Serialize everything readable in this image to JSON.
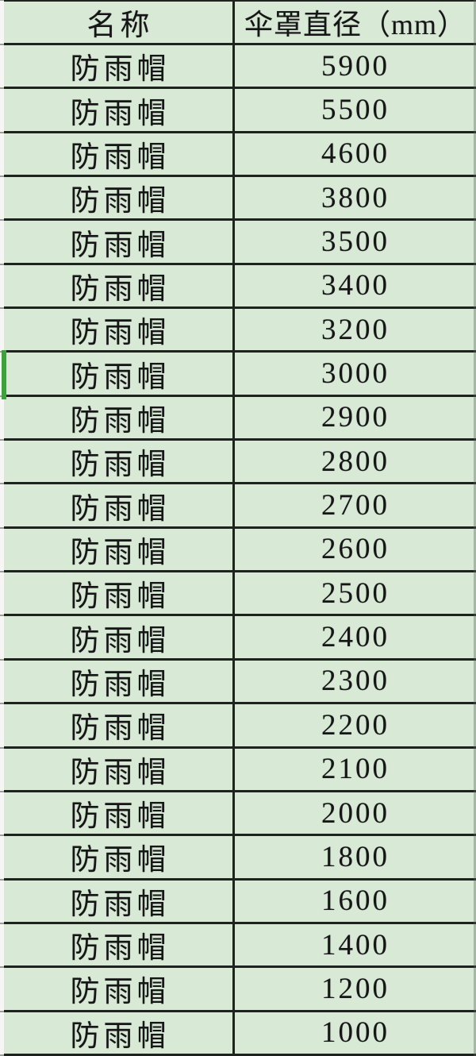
{
  "table": {
    "header": {
      "name": "名称",
      "diameter": "伞罩直径（mm）"
    },
    "rows": [
      {
        "name": "防雨帽",
        "value": "5900"
      },
      {
        "name": "防雨帽",
        "value": "5500"
      },
      {
        "name": "防雨帽",
        "value": "4600"
      },
      {
        "name": "防雨帽",
        "value": "3800"
      },
      {
        "name": "防雨帽",
        "value": "3500"
      },
      {
        "name": "防雨帽",
        "value": "3400"
      },
      {
        "name": "防雨帽",
        "value": "3200"
      },
      {
        "name": "防雨帽",
        "value": "3000"
      },
      {
        "name": "防雨帽",
        "value": "2900"
      },
      {
        "name": "防雨帽",
        "value": "2800"
      },
      {
        "name": "防雨帽",
        "value": "2700"
      },
      {
        "name": "防雨帽",
        "value": "2600"
      },
      {
        "name": "防雨帽",
        "value": "2500"
      },
      {
        "name": "防雨帽",
        "value": "2400"
      },
      {
        "name": "防雨帽",
        "value": "2300"
      },
      {
        "name": "防雨帽",
        "value": "2200"
      },
      {
        "name": "防雨帽",
        "value": "2100"
      },
      {
        "name": "防雨帽",
        "value": "2000"
      },
      {
        "name": "防雨帽",
        "value": "1800"
      },
      {
        "name": "防雨帽",
        "value": "1600"
      },
      {
        "name": "防雨帽",
        "value": "1400"
      },
      {
        "name": "防雨帽",
        "value": "1200"
      },
      {
        "name": "防雨帽",
        "value": "1000"
      }
    ],
    "selection": {
      "row_index": 7
    }
  },
  "colors": {
    "cell_background": "#d8ead6",
    "grid_border": "#1f231f",
    "selection_green": "#3da23d",
    "left_sliver": "#f6f6f4"
  }
}
